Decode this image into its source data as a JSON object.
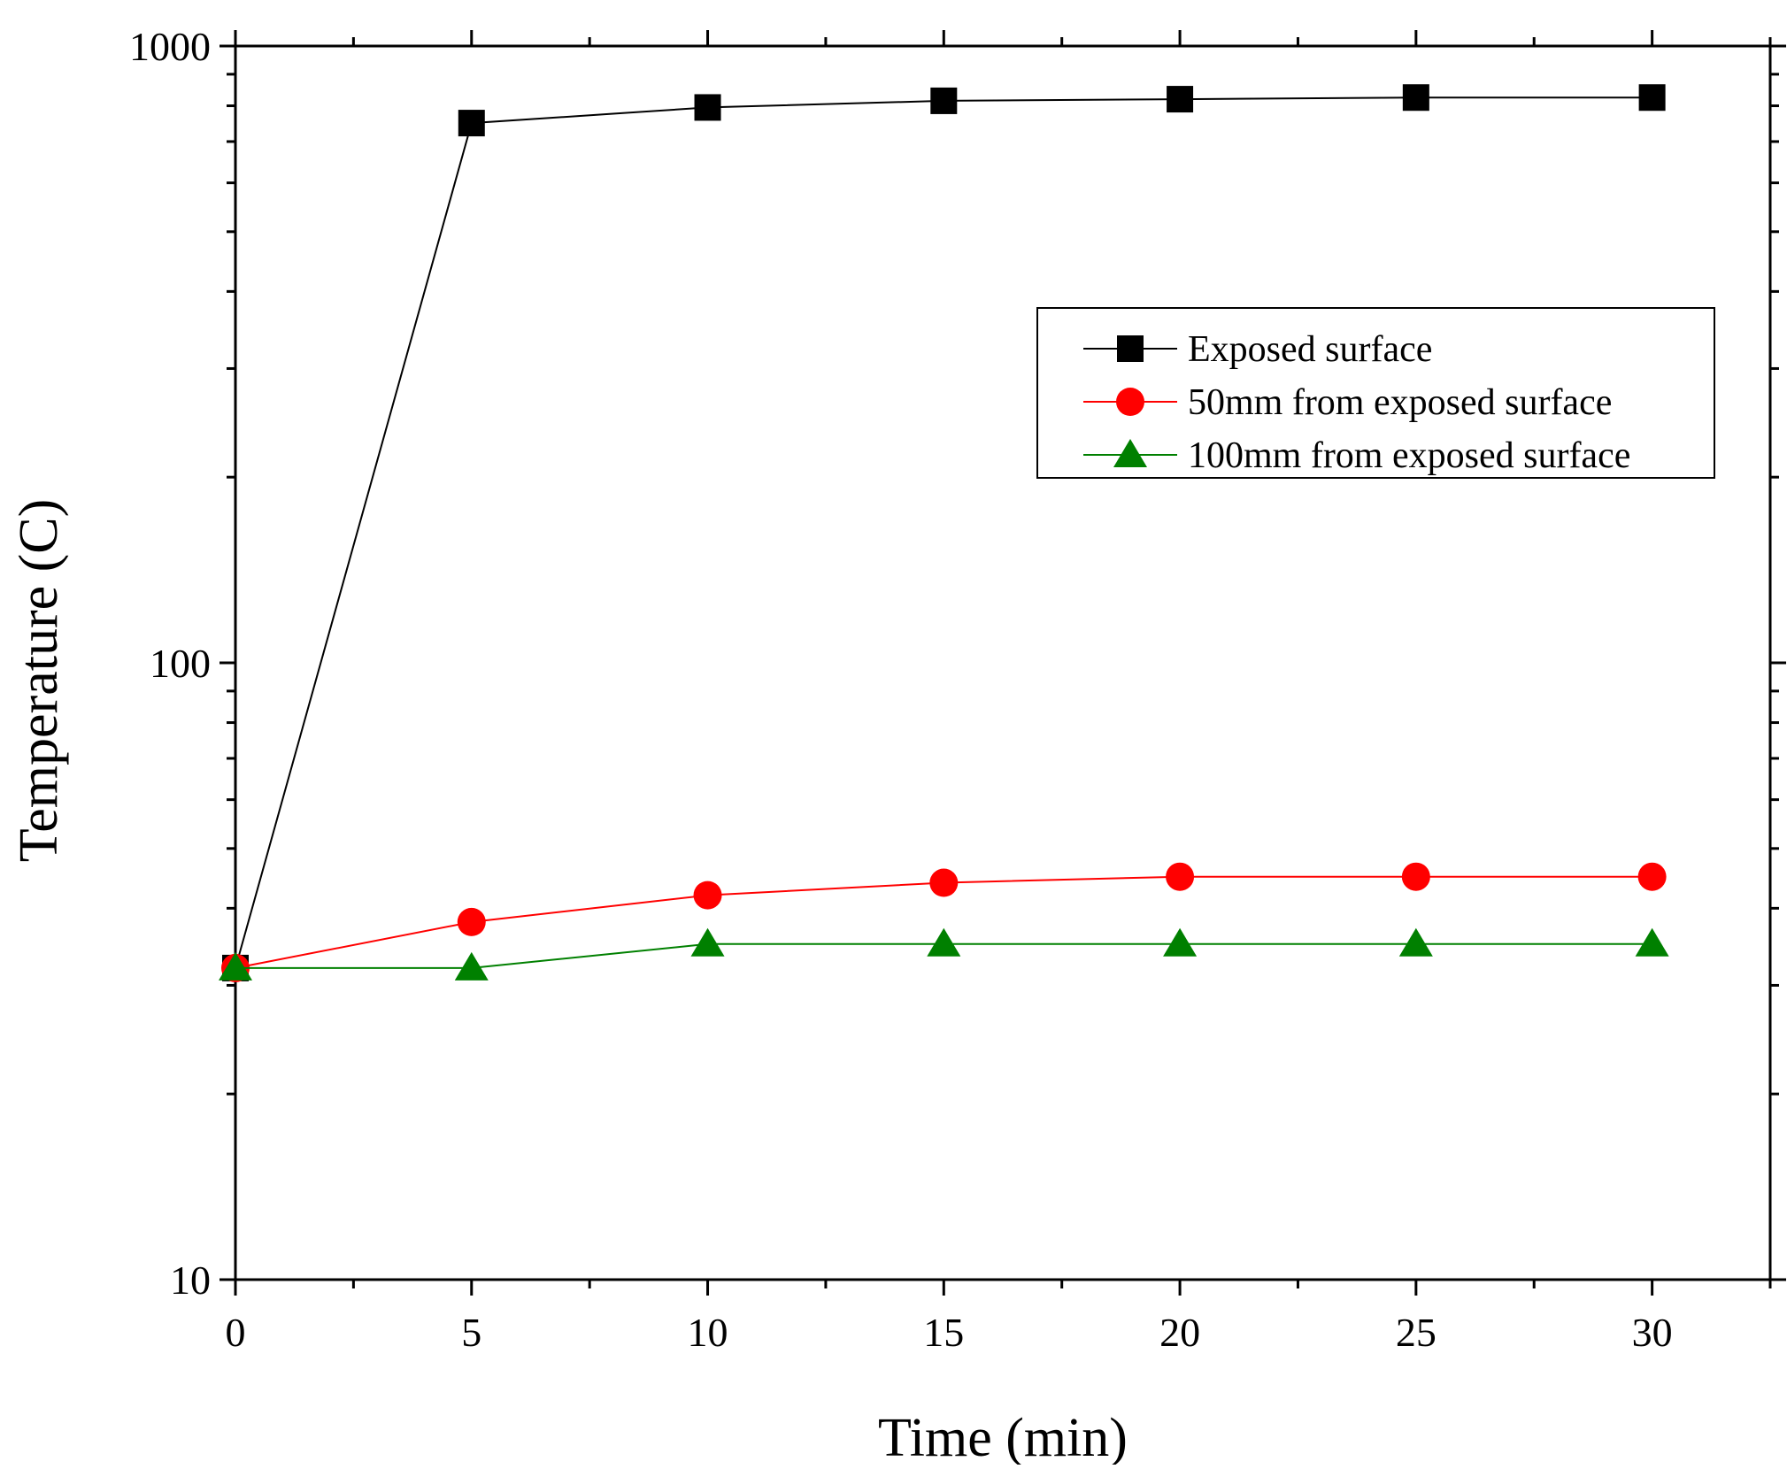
{
  "chart_data": {
    "type": "line",
    "title": "",
    "xlabel": "Time (min)",
    "ylabel": "Temperature (C)",
    "yscale": "log",
    "xlim": [
      0,
      32.5
    ],
    "ylim": [
      10,
      1000
    ],
    "x": [
      0,
      5,
      10,
      15,
      20,
      25,
      30
    ],
    "xticks": [
      0,
      5,
      10,
      15,
      20,
      25,
      30
    ],
    "xtick_labels": [
      "0",
      "5",
      "10",
      "15",
      "20",
      "25",
      "30"
    ],
    "yticks": [
      10,
      100,
      1000
    ],
    "ytick_labels": [
      "10",
      "100",
      "1000"
    ],
    "grid": false,
    "legend_position": "upper-right",
    "series": [
      {
        "name": "Exposed surface",
        "color": "#000000",
        "marker": "square",
        "values": [
          32,
          750,
          795,
          815,
          820,
          825,
          825
        ]
      },
      {
        "name": "50mm from exposed surface",
        "color": "#ff0000",
        "marker": "circle",
        "values": [
          32,
          38,
          42,
          44,
          45,
          45,
          45
        ]
      },
      {
        "name": "100mm from exposed surface",
        "color": "#008000",
        "marker": "triangle",
        "values": [
          32,
          32,
          35,
          35,
          35,
          35,
          35
        ]
      }
    ]
  }
}
